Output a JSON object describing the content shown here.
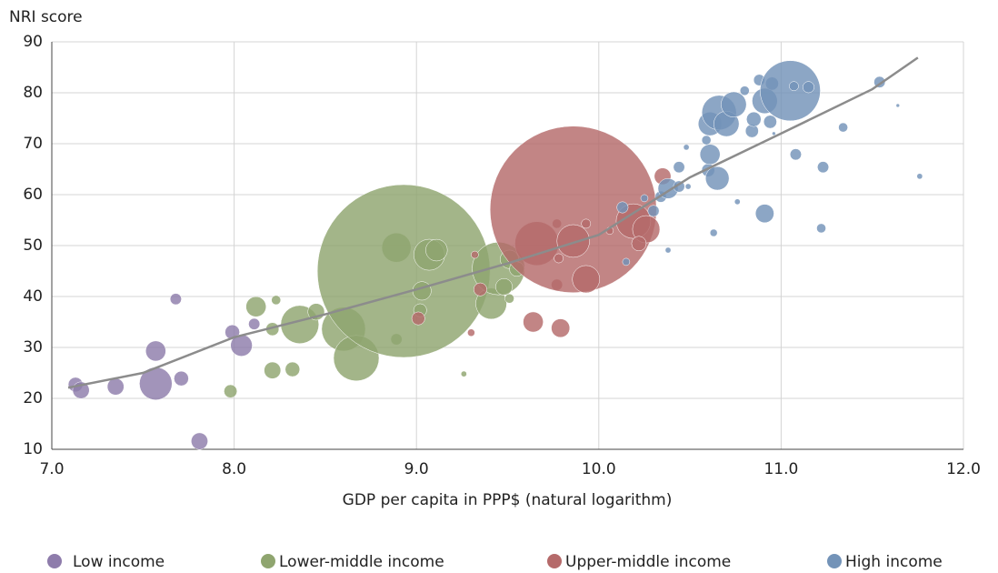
{
  "chart_data": {
    "type": "scatter",
    "y_label": "NRI score",
    "x_label": "GDP per capita in PPP$ (natural logarithm)",
    "xlim": [
      7.0,
      12.0
    ],
    "ylim": [
      10,
      90
    ],
    "xticks": [
      {
        "value": 7,
        "label": "7.0"
      },
      {
        "value": 8,
        "label": "8.0"
      },
      {
        "value": 9,
        "label": "9.0"
      },
      {
        "value": 10,
        "label": "10.0"
      },
      {
        "value": 11,
        "label": "11.0"
      },
      {
        "value": 12,
        "label": "12.0"
      }
    ],
    "yticks": [
      10,
      20,
      30,
      40,
      50,
      60,
      70,
      80,
      90
    ],
    "grid": true,
    "legend": "bottom",
    "series": [
      {
        "name": "Low income",
        "color": "#8e7cab",
        "x": [
          7.13,
          7.16,
          7.35,
          7.57,
          7.57,
          7.71,
          7.68,
          7.81,
          7.99,
          8.04,
          8.11
        ],
        "values": [
          22.7,
          21.6,
          22.3,
          29.3,
          22.9,
          23.9,
          39.5,
          11.6,
          33.0,
          30.4,
          34.6
        ],
        "sizes": [
          10,
          13,
          13,
          19,
          50,
          10,
          6,
          13,
          10,
          22,
          6
        ]
      },
      {
        "name": "Lower-middle income",
        "color": "#8fa56f",
        "x": [
          7.98,
          8.12,
          8.21,
          8.21,
          8.23,
          8.32,
          8.36,
          8.45,
          8.6,
          8.67,
          8.89,
          8.89,
          8.93,
          9.02,
          9.03,
          9.07,
          9.11,
          9.26,
          9.41,
          9.45,
          9.48,
          9.51,
          9.55,
          9.51
        ],
        "values": [
          21.4,
          38.0,
          25.5,
          33.6,
          39.3,
          25.7,
          34.5,
          37.0,
          33.6,
          27.9,
          31.6,
          49.6,
          45.0,
          37.3,
          41.1,
          48.2,
          49.1,
          24.8,
          38.6,
          45.5,
          41.9,
          47.3,
          45.4,
          39.6
        ],
        "sizes": [
          8,
          19,
          13,
          8,
          4,
          10,
          68,
          13,
          90,
          97,
          6,
          40,
          1400,
          8,
          16,
          45,
          22,
          1.5,
          45,
          130,
          13,
          16,
          10,
          4
        ]
      },
      {
        "name": "Upper-middle income",
        "color": "#b56a6a",
        "x": [
          9.01,
          9.3,
          9.32,
          9.35,
          9.64,
          9.66,
          9.77,
          9.79,
          9.77,
          9.86,
          9.78,
          9.86,
          9.93,
          9.93,
          10.06,
          10.19,
          10.26,
          10.22,
          10.35
        ],
        "values": [
          35.7,
          32.9,
          48.2,
          41.4,
          35.0,
          50.4,
          42.3,
          33.8,
          54.3,
          57.1,
          47.5,
          50.9,
          43.4,
          54.3,
          52.9,
          54.8,
          53.2,
          50.4,
          63.6
        ],
        "sizes": [
          8,
          2.5,
          2.5,
          8,
          19,
          90,
          6,
          16,
          4,
          1300,
          4,
          50,
          35,
          4,
          2.5,
          56,
          35,
          10,
          13
        ]
      },
      {
        "name": "High income",
        "color": "#7393b8",
        "x": [
          10.15,
          10.13,
          10.25,
          10.3,
          10.34,
          10.38,
          10.38,
          10.44,
          10.44,
          10.49,
          10.48,
          10.59,
          10.6,
          10.61,
          10.61,
          10.65,
          10.63,
          10.66,
          10.7,
          10.74,
          10.8,
          10.76,
          10.84,
          10.85,
          10.88,
          10.91,
          10.94,
          10.95,
          10.91,
          11.05,
          10.96,
          11.07,
          11.15,
          11.08,
          11.23,
          11.22,
          11.34,
          11.54,
          11.64,
          11.76
        ],
        "values": [
          46.8,
          57.5,
          59.3,
          56.8,
          59.6,
          49.1,
          61.2,
          61.6,
          65.4,
          61.6,
          69.3,
          70.7,
          64.8,
          67.9,
          73.9,
          63.2,
          52.5,
          76.1,
          73.9,
          77.7,
          80.4,
          58.6,
          72.5,
          74.8,
          82.5,
          78.4,
          74.3,
          81.8,
          56.3,
          80.4,
          72.0,
          81.3,
          81.1,
          67.9,
          65.4,
          53.4,
          73.2,
          82.1,
          77.5,
          63.6
        ],
        "sizes": [
          2.5,
          6,
          2.5,
          6,
          6,
          1.5,
          19,
          6,
          6,
          1.5,
          1.5,
          4,
          8,
          19,
          26,
          26,
          2.5,
          56,
          30,
          30,
          4,
          1.5,
          8,
          10,
          6,
          30,
          8,
          8,
          16,
          170,
          0.6,
          4,
          6,
          6,
          6,
          4,
          4,
          6,
          0.6,
          1.5
        ]
      }
    ],
    "trend": {
      "color": "#8c8c8c",
      "x": [
        7.09,
        7.5,
        8.0,
        8.5,
        9.0,
        9.5,
        10.0,
        10.5,
        11.0,
        11.5,
        11.75
      ],
      "values": [
        22.1,
        25.0,
        32.0,
        36.5,
        41.4,
        46.5,
        52.1,
        63.4,
        72.0,
        80.7,
        86.9
      ]
    }
  }
}
